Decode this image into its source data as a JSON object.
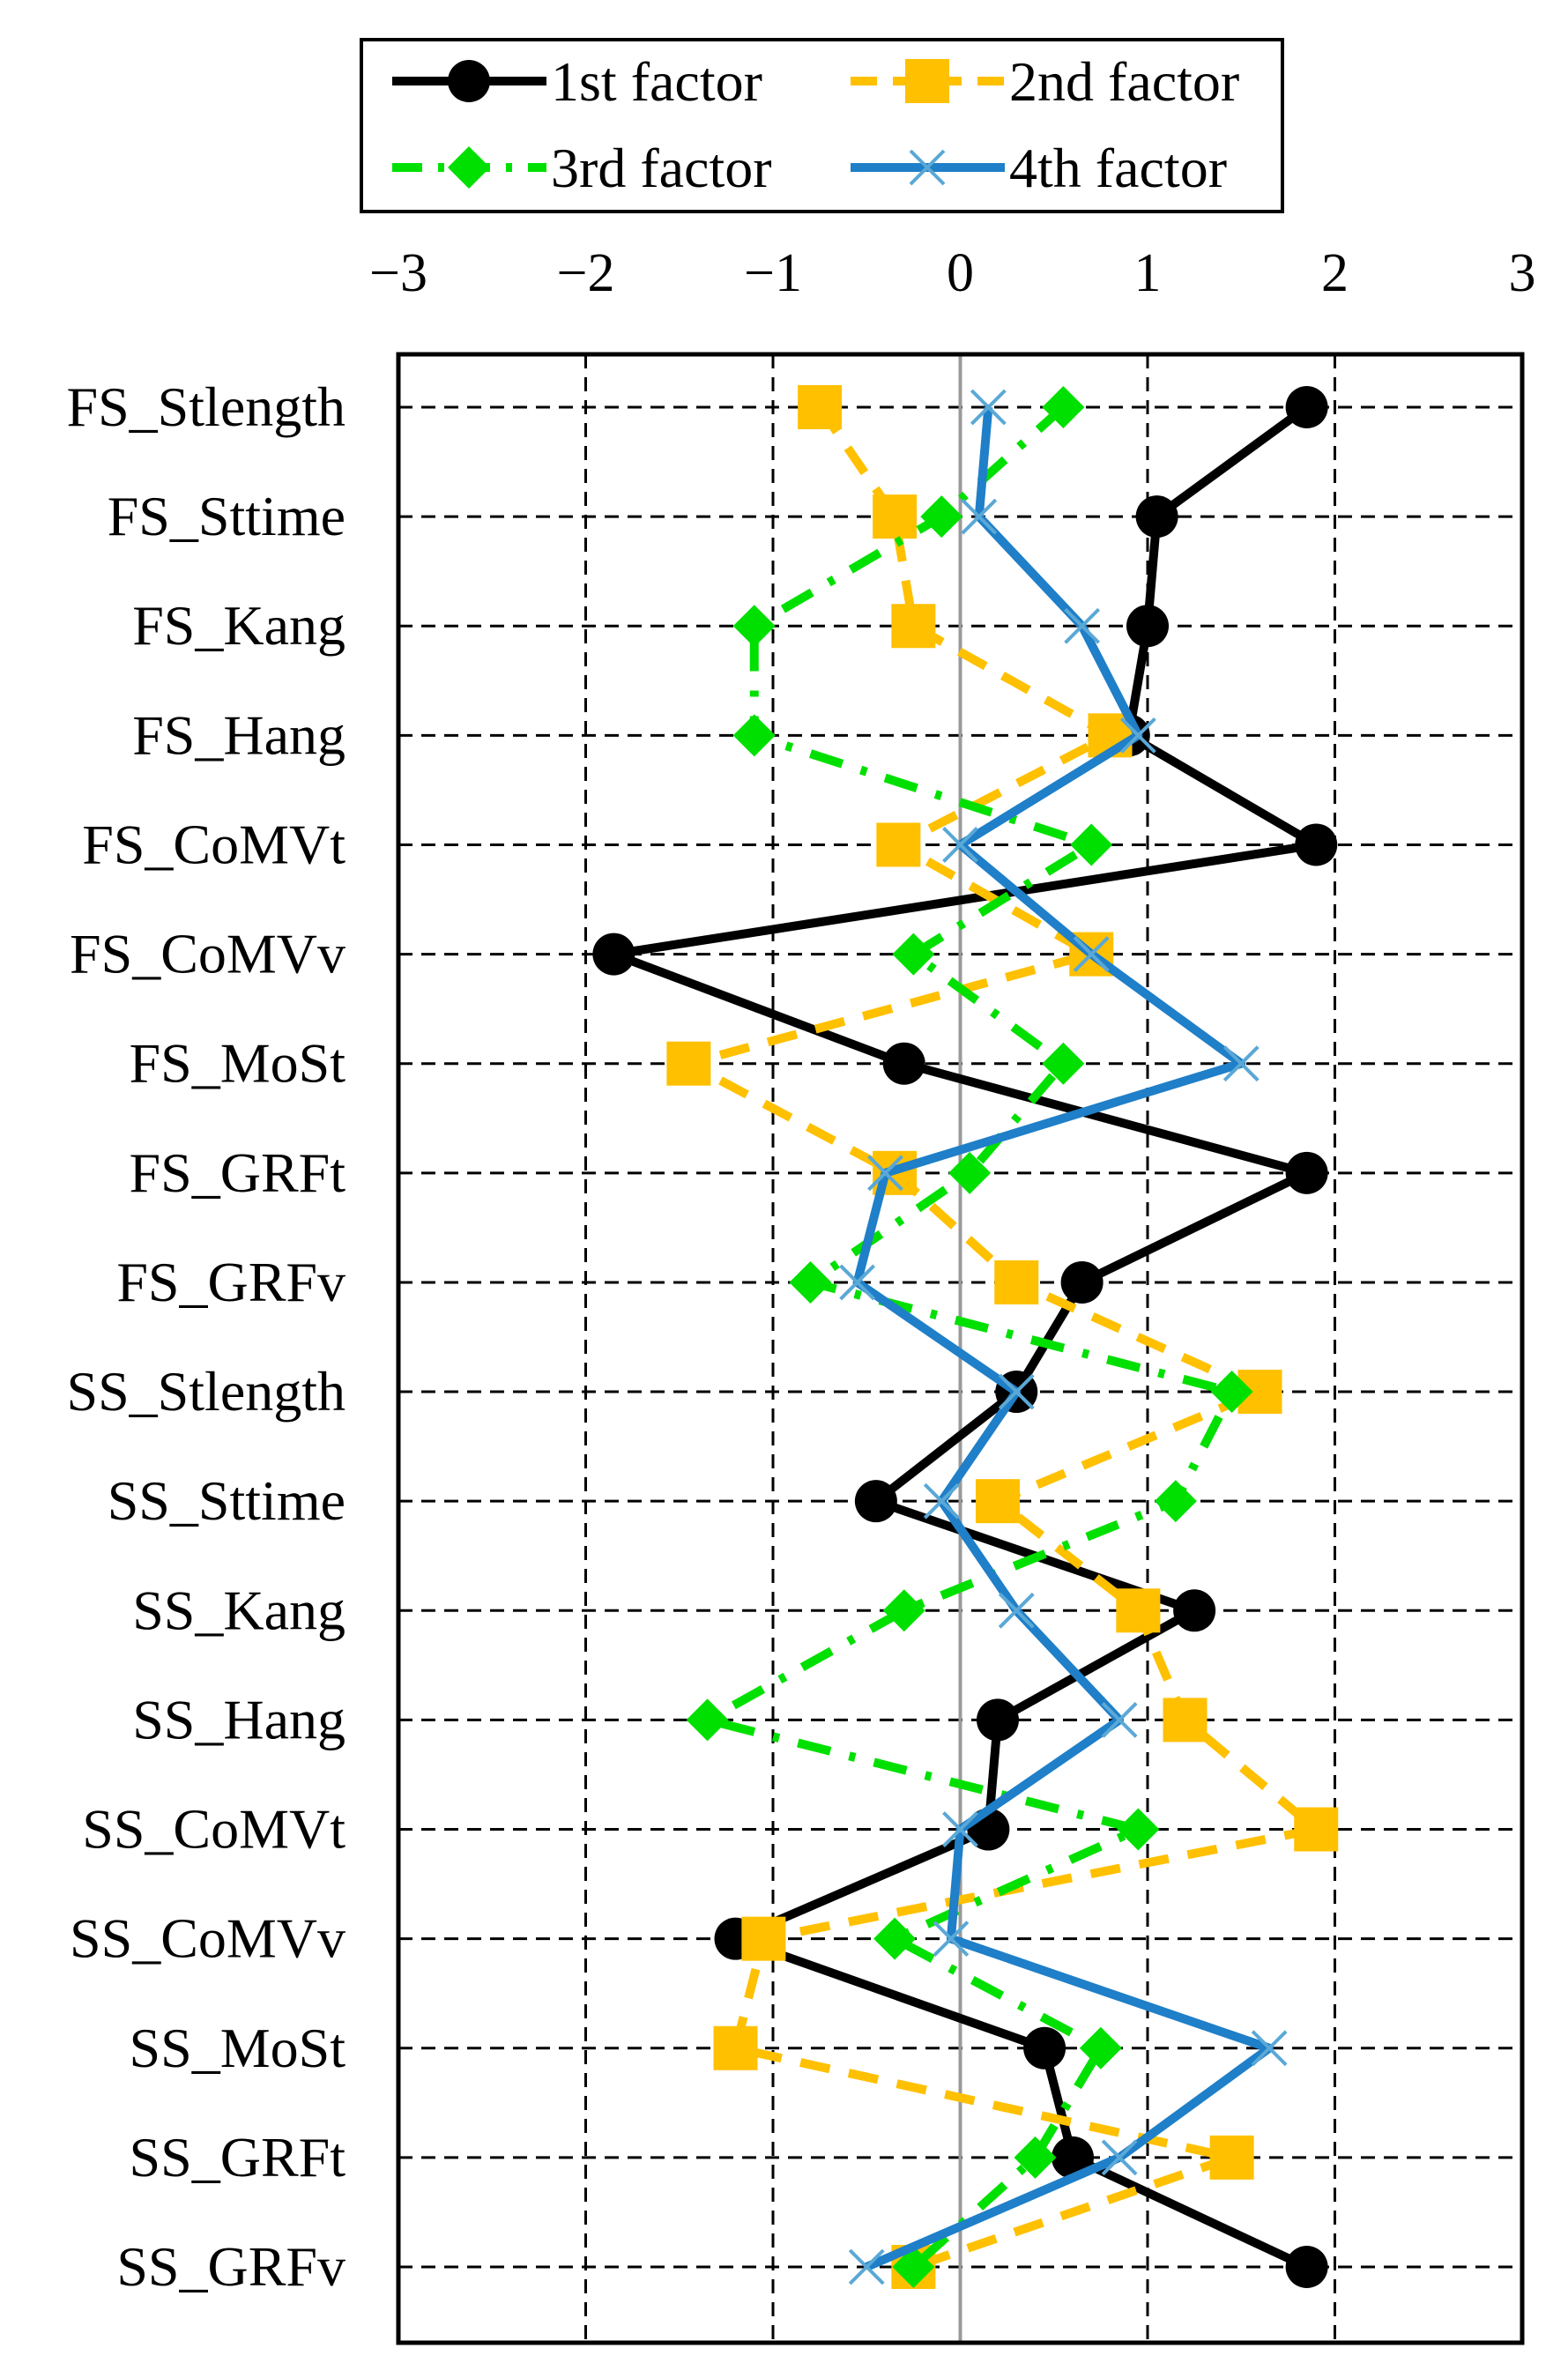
{
  "chart_data": {
    "type": "line",
    "orientation": "horizontal",
    "xlim": [
      -3,
      3
    ],
    "xticks": [
      -3,
      -2,
      -1,
      0,
      1,
      2,
      3
    ],
    "xtick_labels": [
      "−3",
      "−2",
      "−1",
      "0",
      "1",
      "2",
      "3"
    ],
    "categories": [
      "FS_Stlength",
      "FS_Sttime",
      "FS_Kang",
      "FS_Hang",
      "FS_CoMVt",
      "FS_CoMVv",
      "FS_MoSt",
      "FS_GRFt",
      "FS_GRFv",
      "SS_Stlength",
      "SS_Sttime",
      "SS_Kang",
      "SS_Hang",
      "SS_CoMVt",
      "SS_CoMVv",
      "SS_MoSt",
      "SS_GRFt",
      "SS_GRFv"
    ],
    "grid": true,
    "legend_position": "top",
    "series": [
      {
        "name": "1st factor",
        "color": "#000000",
        "marker": "circle",
        "line": "solid",
        "values": [
          1.85,
          1.05,
          1.0,
          0.9,
          1.9,
          -1.85,
          -0.3,
          1.85,
          0.65,
          0.3,
          -0.45,
          1.25,
          0.2,
          0.15,
          -1.2,
          0.45,
          0.6,
          1.85
        ]
      },
      {
        "name": "2nd factor",
        "color": "#FFC000",
        "marker": "square",
        "line": "dashed",
        "values": [
          -0.75,
          -0.35,
          -0.25,
          0.8,
          -0.33,
          0.7,
          -1.45,
          -0.35,
          0.3,
          1.6,
          0.2,
          0.95,
          1.2,
          1.9,
          -1.05,
          -1.2,
          1.45,
          -0.25
        ]
      },
      {
        "name": "3rd factor",
        "color": "#00E000",
        "marker": "diamond",
        "line": "dash-dot",
        "values": [
          0.55,
          -0.1,
          -1.1,
          -1.1,
          0.7,
          -0.25,
          0.55,
          0.05,
          -0.8,
          1.45,
          1.15,
          -0.3,
          -1.35,
          0.95,
          -0.35,
          0.75,
          0.4,
          -0.25
        ]
      },
      {
        "name": "4th factor",
        "color": "#1F7FC8",
        "marker": "x",
        "line": "solid",
        "values": [
          0.15,
          0.1,
          0.65,
          0.95,
          0.0,
          0.7,
          1.5,
          -0.4,
          -0.55,
          0.3,
          -0.1,
          0.3,
          0.85,
          0.0,
          -0.05,
          1.65,
          0.85,
          -0.5
        ]
      }
    ]
  }
}
